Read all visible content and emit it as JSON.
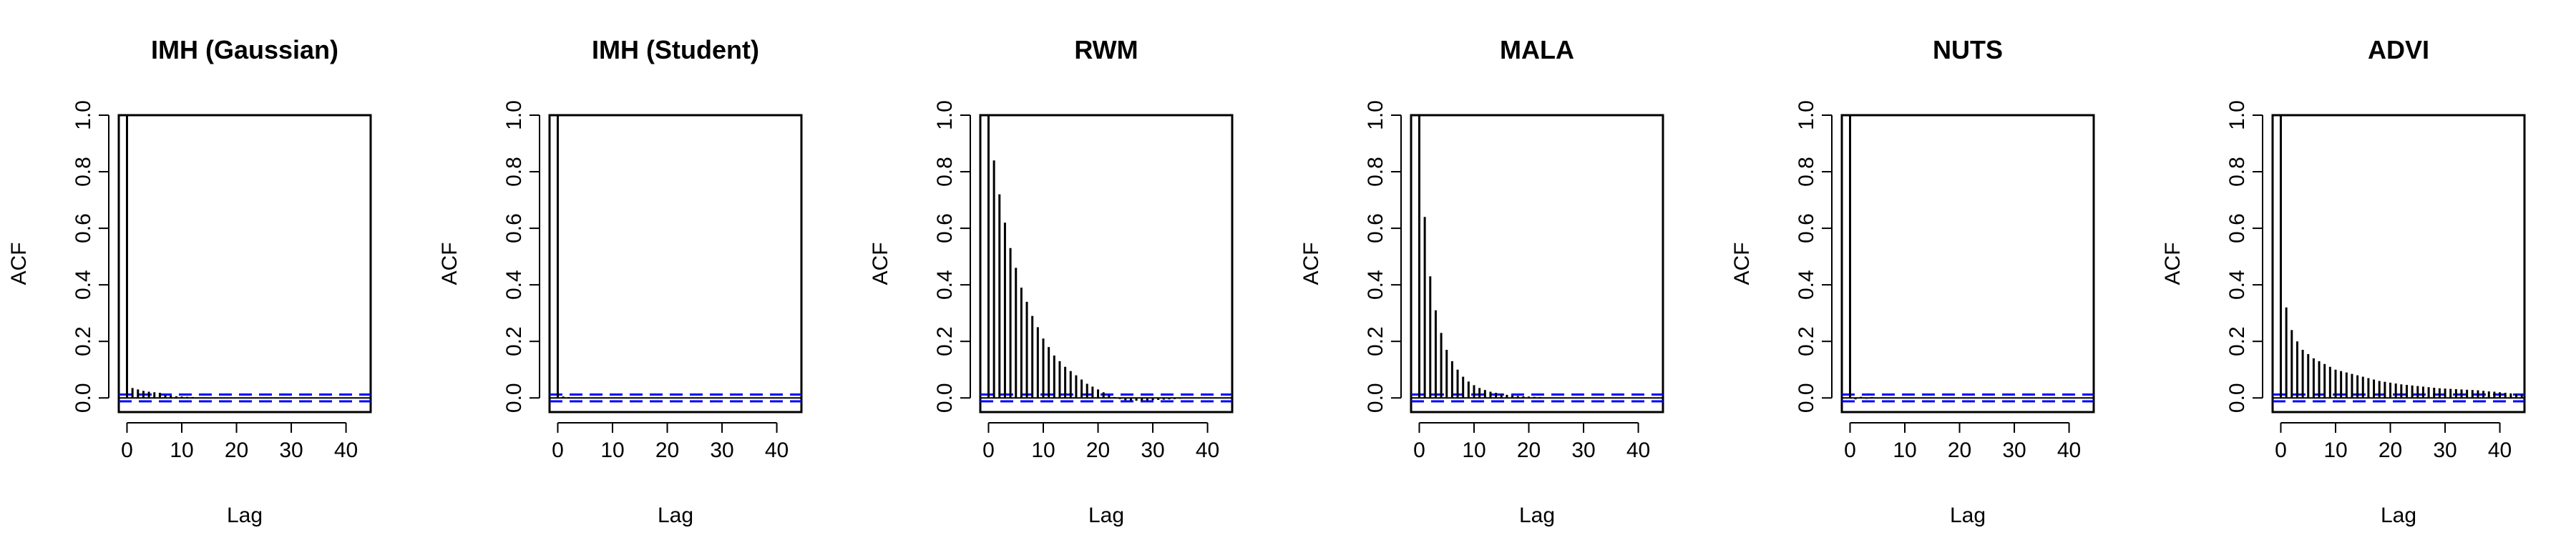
{
  "chart_data": [
    {
      "type": "bar",
      "title": "IMH (Gaussian)",
      "xlabel": "Lag",
      "ylabel": "ACF",
      "xlim": [
        -1.5,
        44.5
      ],
      "ylim": [
        -0.05,
        1.0
      ],
      "xticks": [
        0,
        10,
        20,
        30,
        40
      ],
      "yticks": [
        0.0,
        0.2,
        0.4,
        0.6,
        0.8,
        1.0
      ],
      "confidence_band": 0.012,
      "values": [
        1.0,
        0.035,
        0.03,
        0.025,
        0.022,
        0.02,
        0.018,
        0.01,
        0.008,
        0.006,
        0.005,
        0.004,
        0.003,
        0.002,
        0.002,
        0.001,
        0.001,
        0.0,
        0.0,
        0.0,
        -0.001,
        0.0,
        0.0,
        0.0,
        0.0,
        0.0,
        0.0,
        0.0,
        0.0,
        0.0,
        0.0,
        0.0,
        0.0,
        0.0,
        0.0,
        0.0,
        0.0,
        0.0,
        0.0,
        0.0,
        0.0,
        0.0,
        0.0,
        0.0,
        0.0
      ]
    },
    {
      "type": "bar",
      "title": "IMH (Student)",
      "xlabel": "Lag",
      "ylabel": "ACF",
      "xlim": [
        -1.5,
        44.5
      ],
      "ylim": [
        -0.05,
        1.0
      ],
      "xticks": [
        0,
        10,
        20,
        30,
        40
      ],
      "yticks": [
        0.0,
        0.2,
        0.4,
        0.6,
        0.8,
        1.0
      ],
      "confidence_band": 0.012,
      "values": [
        1.0,
        0.005,
        0.003,
        0.002,
        0.002,
        0.001,
        0.001,
        0.0,
        0.0,
        0.0,
        0.0,
        0.0,
        0.0,
        0.0,
        0.0,
        0.0,
        0.0,
        0.0,
        0.0,
        0.0,
        0.0,
        0.0,
        0.0,
        0.0,
        0.0,
        0.0,
        0.0,
        0.0,
        0.0,
        0.0,
        0.0,
        0.0,
        0.0,
        0.0,
        0.0,
        0.0,
        0.0,
        0.0,
        0.0,
        0.0,
        0.0,
        0.0,
        0.0,
        0.0,
        0.0
      ]
    },
    {
      "type": "bar",
      "title": "RWM",
      "xlabel": "Lag",
      "ylabel": "ACF",
      "xlim": [
        -1.5,
        44.5
      ],
      "ylim": [
        -0.05,
        1.0
      ],
      "xticks": [
        0,
        10,
        20,
        30,
        40
      ],
      "yticks": [
        0.0,
        0.2,
        0.4,
        0.6,
        0.8,
        1.0
      ],
      "confidence_band": 0.012,
      "values": [
        1.0,
        0.84,
        0.72,
        0.62,
        0.53,
        0.46,
        0.39,
        0.34,
        0.29,
        0.25,
        0.21,
        0.18,
        0.15,
        0.13,
        0.11,
        0.095,
        0.08,
        0.065,
        0.05,
        0.04,
        0.03,
        0.02,
        0.01,
        0.003,
        -0.004,
        -0.008,
        -0.01,
        -0.01,
        -0.01,
        -0.009,
        -0.008,
        -0.007,
        -0.006,
        -0.005,
        -0.004,
        -0.003,
        -0.002,
        -0.002,
        -0.001,
        -0.001,
        0.0,
        0.0,
        0.0,
        0.0,
        0.0
      ]
    },
    {
      "type": "bar",
      "title": "MALA",
      "xlabel": "Lag",
      "ylabel": "ACF",
      "xlim": [
        -1.5,
        44.5
      ],
      "ylim": [
        -0.05,
        1.0
      ],
      "xticks": [
        0,
        10,
        20,
        30,
        40
      ],
      "yticks": [
        0.0,
        0.2,
        0.4,
        0.6,
        0.8,
        1.0
      ],
      "confidence_band": 0.012,
      "values": [
        1.0,
        0.64,
        0.43,
        0.31,
        0.23,
        0.17,
        0.13,
        0.1,
        0.075,
        0.058,
        0.045,
        0.035,
        0.028,
        0.022,
        0.018,
        0.014,
        0.011,
        0.009,
        0.007,
        0.006,
        0.005,
        0.004,
        0.003,
        0.002,
        0.002,
        0.001,
        0.001,
        0.0,
        0.0,
        0.0,
        0.0,
        0.0,
        0.0,
        0.0,
        0.0,
        0.0,
        0.0,
        0.0,
        0.0,
        0.0,
        0.0,
        0.0,
        0.0,
        0.0,
        0.0
      ]
    },
    {
      "type": "bar",
      "title": "NUTS",
      "xlabel": "Lag",
      "ylabel": "ACF",
      "xlim": [
        -1.5,
        44.5
      ],
      "ylim": [
        -0.05,
        1.0
      ],
      "xticks": [
        0,
        10,
        20,
        30,
        40
      ],
      "yticks": [
        0.0,
        0.2,
        0.4,
        0.6,
        0.8,
        1.0
      ],
      "confidence_band": 0.012,
      "values": [
        1.0,
        -0.005,
        0.004,
        -0.003,
        0.003,
        -0.002,
        0.002,
        -0.001,
        0.001,
        0.0,
        0.0,
        0.0,
        0.0,
        0.0,
        0.0,
        0.0,
        0.0,
        0.0,
        0.0,
        0.0,
        0.0,
        0.0,
        0.0,
        0.0,
        0.0,
        0.0,
        0.0,
        0.0,
        0.0,
        0.0,
        0.0,
        0.0,
        0.0,
        0.0,
        0.0,
        0.0,
        0.0,
        0.0,
        0.0,
        0.0,
        0.0,
        0.0,
        0.0,
        0.0,
        0.0
      ]
    },
    {
      "type": "bar",
      "title": "ADVI",
      "xlabel": "Lag",
      "ylabel": "ACF",
      "xlim": [
        -1.5,
        44.5
      ],
      "ylim": [
        -0.05,
        1.0
      ],
      "xticks": [
        0,
        10,
        20,
        30,
        40
      ],
      "yticks": [
        0.0,
        0.2,
        0.4,
        0.6,
        0.8,
        1.0
      ],
      "confidence_band": 0.012,
      "values": [
        1.0,
        0.32,
        0.24,
        0.2,
        0.17,
        0.155,
        0.14,
        0.13,
        0.12,
        0.11,
        0.1,
        0.095,
        0.09,
        0.085,
        0.08,
        0.075,
        0.07,
        0.065,
        0.06,
        0.057,
        0.054,
        0.051,
        0.048,
        0.046,
        0.044,
        0.042,
        0.04,
        0.038,
        0.036,
        0.034,
        0.033,
        0.032,
        0.031,
        0.03,
        0.029,
        0.028,
        0.027,
        0.025,
        0.023,
        0.022,
        0.02,
        0.018,
        0.016,
        0.014,
        0.012
      ]
    }
  ],
  "colors": {
    "bar": "#000000",
    "frame": "#000000",
    "zero_line": "#000000",
    "confidence_band": "#0000ff"
  }
}
